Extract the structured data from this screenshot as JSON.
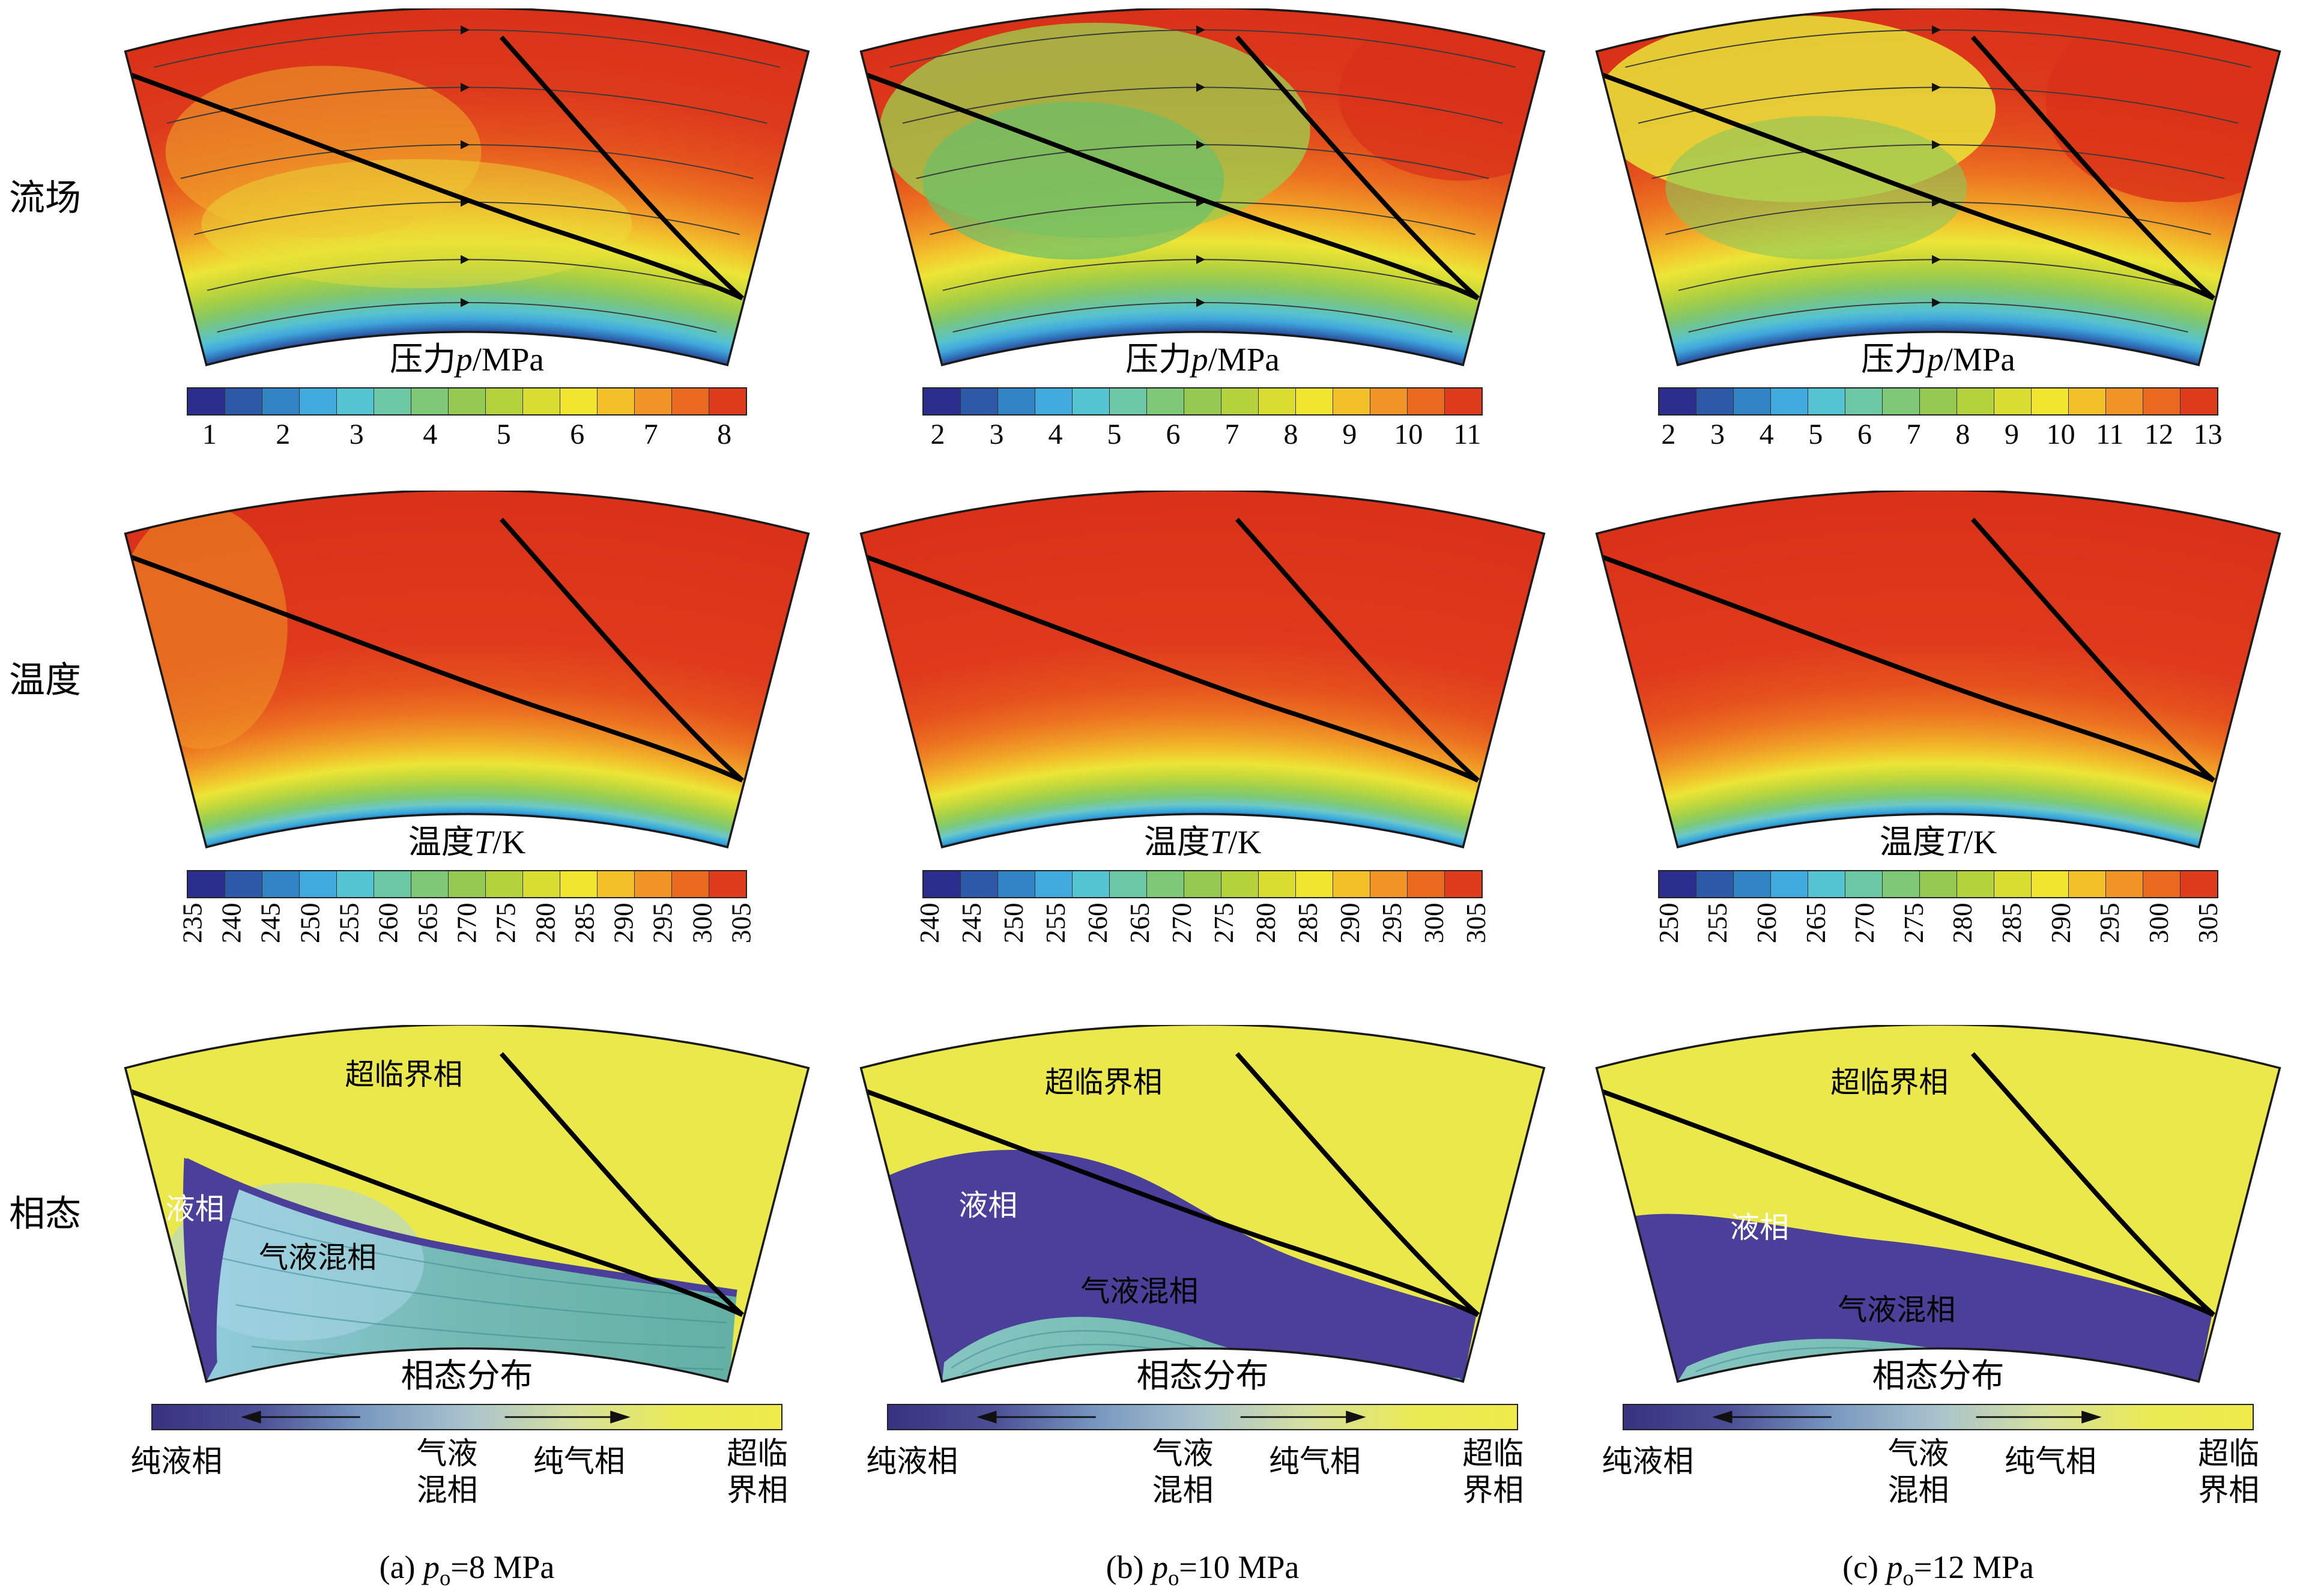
{
  "chart_data": {
    "type": "heatmap",
    "layout": {
      "rows": 3,
      "columns": 3
    },
    "row_labels": [
      "流场",
      "温度",
      "相态"
    ],
    "colorbars": {
      "pressure_title": {
        "pre": "压力",
        "sym": "p",
        "post": "/MPa"
      },
      "temperature_title": {
        "pre": "温度",
        "sym": "T",
        "post": "/K"
      },
      "phase_title": "相态分布"
    },
    "columns": [
      {
        "id": "a",
        "caption": {
          "prefix": "(a) ",
          "sym": "p",
          "sub": "o",
          "rest": "=8 MPa"
        },
        "pressure_ticks": [
          "1",
          "2",
          "3",
          "4",
          "5",
          "6",
          "7",
          "8"
        ],
        "temperature_ticks": [
          "235",
          "240",
          "245",
          "250",
          "255",
          "260",
          "265",
          "270",
          "275",
          "280",
          "285",
          "290",
          "295",
          "300",
          "305"
        ],
        "regions": {
          "supercritical": "超临界相",
          "liquid": "液相",
          "mixed": "气液混相"
        }
      },
      {
        "id": "b",
        "caption": {
          "prefix": "(b) ",
          "sym": "p",
          "sub": "o",
          "rest": "=10 MPa"
        },
        "pressure_ticks": [
          "2",
          "3",
          "4",
          "5",
          "6",
          "7",
          "8",
          "9",
          "10",
          "11"
        ],
        "temperature_ticks": [
          "240",
          "245",
          "250",
          "255",
          "260",
          "265",
          "270",
          "275",
          "280",
          "285",
          "290",
          "295",
          "300",
          "305"
        ],
        "regions": {
          "supercritical": "超临界相",
          "liquid": "液相",
          "mixed": "气液混相"
        }
      },
      {
        "id": "c",
        "caption": {
          "prefix": "(c) ",
          "sym": "p",
          "sub": "o",
          "rest": "=12 MPa"
        },
        "pressure_ticks": [
          "2",
          "3",
          "4",
          "5",
          "6",
          "7",
          "8",
          "9",
          "10",
          "11",
          "12",
          "13"
        ],
        "temperature_ticks": [
          "250",
          "255",
          "260",
          "265",
          "270",
          "275",
          "280",
          "285",
          "290",
          "295",
          "300",
          "305"
        ],
        "regions": {
          "supercritical": "超临界相",
          "liquid": "液相",
          "mixed": "气液混相"
        }
      }
    ],
    "phase_legend": {
      "labels": [
        "纯液相",
        "气液混相",
        "纯气相",
        "超临界相"
      ]
    },
    "colors": {
      "rainbow": [
        "#2b2e8c",
        "#2c5aa9",
        "#3184c4",
        "#41aadc",
        "#55c4d2",
        "#6cc8a4",
        "#7fc878",
        "#94ca52",
        "#b4d23c",
        "#d8dd30",
        "#f1e52f",
        "#f3c02a",
        "#f09425",
        "#e96a1f",
        "#dd3b1c"
      ],
      "phase_bar": [
        "#38327f",
        "#4b4e95",
        "#7898c0",
        "#a9c3cc",
        "#d5e0a0",
        "#e9ea55",
        "#eeeb4a"
      ],
      "phase_fill": {
        "supercritical": "#ebe84b",
        "liquid": "#4a3f99",
        "mixed": "#74b9b4"
      }
    }
  }
}
